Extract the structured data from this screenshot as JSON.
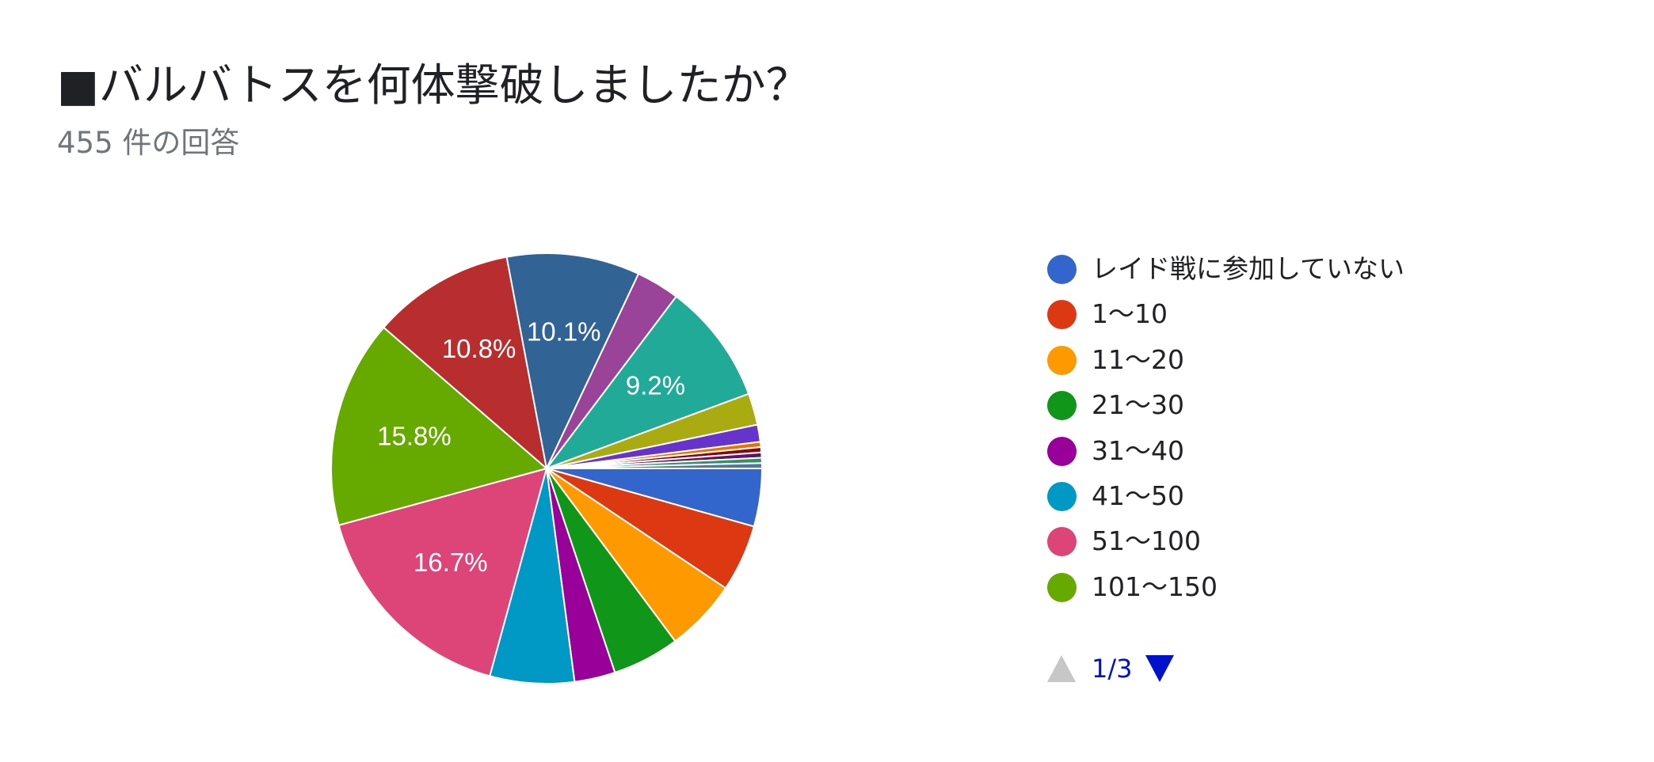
{
  "title": "■バルバトスを何体撃破しましたか？",
  "subtitle": "455 件の回答",
  "chart_data": {
    "type": "pie",
    "start": "right, clockwise",
    "slices": [
      {
        "label": "レイド戦に参加していない",
        "value": 4.4,
        "color": "#3366cc",
        "shown_label": ""
      },
      {
        "label": "1〜10",
        "value": 5.1,
        "color": "#dc3912",
        "shown_label": ""
      },
      {
        "label": "11〜20",
        "value": 5.5,
        "color": "#ff9900",
        "shown_label": ""
      },
      {
        "label": "21〜30",
        "value": 5.1,
        "color": "#109618",
        "shown_label": ""
      },
      {
        "label": "31〜40",
        "value": 3.1,
        "color": "#990099",
        "shown_label": ""
      },
      {
        "label": "41〜50",
        "value": 6.4,
        "color": "#0099c6",
        "shown_label": ""
      },
      {
        "label": "51〜100",
        "value": 16.7,
        "color": "#dd4477",
        "shown_label": "16.7%"
      },
      {
        "label": "101〜150",
        "value": 15.8,
        "color": "#66aa00",
        "shown_label": "15.8%"
      },
      {
        "label": "",
        "value": 10.8,
        "color": "#b82e2e",
        "shown_label": "10.8%"
      },
      {
        "label": "",
        "value": 10.1,
        "color": "#316395",
        "shown_label": "10.1%"
      },
      {
        "label": "",
        "value": 3.3,
        "color": "#994499",
        "shown_label": ""
      },
      {
        "label": "",
        "value": 9.2,
        "color": "#22aa99",
        "shown_label": "9.2%"
      },
      {
        "label": "",
        "value": 2.4,
        "color": "#aaaa11",
        "shown_label": ""
      },
      {
        "label": "",
        "value": 1.3,
        "color": "#6633cc",
        "shown_label": ""
      },
      {
        "label": "",
        "value": 0.4,
        "color": "#e67300",
        "shown_label": ""
      },
      {
        "label": "",
        "value": 0.4,
        "color": "#8b0707",
        "shown_label": ""
      },
      {
        "label": "",
        "value": 0.4,
        "color": "#651067",
        "shown_label": ""
      },
      {
        "label": "",
        "value": 0.4,
        "color": "#329262",
        "shown_label": ""
      },
      {
        "label": "",
        "value": 0.4,
        "color": "#5574a6",
        "shown_label": ""
      }
    ],
    "legend_position": "right",
    "legend_visible_items": 8
  },
  "pager": {
    "text": "1/3"
  }
}
